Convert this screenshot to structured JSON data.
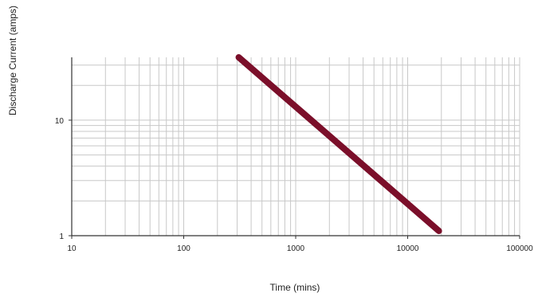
{
  "chart_data": {
    "type": "line",
    "xlabel": "Time (mins)",
    "ylabel": "Discharge Current (amps)",
    "x_scale": "log",
    "y_scale": "log",
    "xlim": [
      10,
      100000
    ],
    "ylim": [
      1,
      35
    ],
    "x_ticks": [
      10,
      100,
      1000,
      10000,
      100000
    ],
    "x_tick_labels": [
      "10",
      "100",
      "1000",
      "10000",
      "100000"
    ],
    "y_ticks": [
      1,
      10
    ],
    "y_tick_labels": [
      "1",
      "10"
    ],
    "grid": true,
    "series": [
      {
        "x": [
          310,
          19000
        ],
        "y": [
          35,
          1.1
        ]
      }
    ],
    "colors": {
      "line": "#7b0f2a",
      "grid": "#c8c8c8",
      "axis": "#333333"
    }
  }
}
